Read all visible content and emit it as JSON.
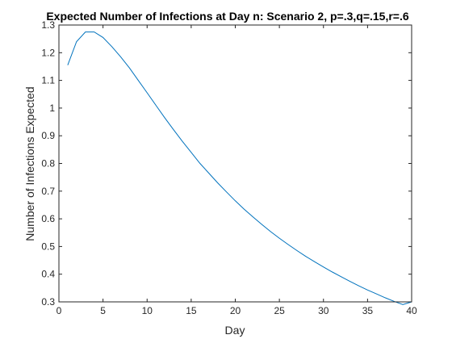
{
  "chart_data": {
    "type": "line",
    "title": "Expected Number of Infections at Day n: Scenario 2, p=.3,q=.15,r=.6",
    "xlabel": "Day",
    "ylabel": "Number of Infections Expected",
    "xlim": [
      0,
      40
    ],
    "ylim": [
      0.3,
      1.3
    ],
    "xticks": [
      0,
      5,
      10,
      15,
      20,
      25,
      30,
      35,
      40
    ],
    "xtick_labels": [
      "0",
      "5",
      "10",
      "15",
      "20",
      "25",
      "30",
      "35",
      "40"
    ],
    "yticks": [
      0.3,
      0.4,
      0.5,
      0.6,
      0.7,
      0.8,
      0.9,
      1.0,
      1.1,
      1.2,
      1.3
    ],
    "ytick_labels": [
      "0.3",
      "0.4",
      "0.5",
      "0.6",
      "0.7",
      "0.8",
      "0.9",
      "1",
      "1.1",
      "1.2",
      "1.3"
    ],
    "grid": false,
    "line_color": "#0072bd",
    "series": [
      {
        "x": [
          1,
          2,
          3,
          4,
          5,
          6,
          7,
          8,
          9,
          10,
          11,
          12,
          13,
          14,
          15,
          16,
          17,
          18,
          19,
          20,
          21,
          22,
          23,
          24,
          25,
          26,
          27,
          28,
          29,
          30,
          31,
          32,
          33,
          34,
          35,
          36,
          37,
          38,
          39,
          40
        ],
        "values": [
          1.155,
          1.24,
          1.275,
          1.275,
          1.255,
          1.222,
          1.185,
          1.145,
          1.1,
          1.055,
          1.01,
          0.965,
          0.922,
          0.88,
          0.84,
          0.8,
          0.765,
          0.73,
          0.697,
          0.665,
          0.635,
          0.607,
          0.58,
          0.554,
          0.53,
          0.507,
          0.485,
          0.464,
          0.445,
          0.426,
          0.408,
          0.391,
          0.374,
          0.358,
          0.343,
          0.329,
          0.315,
          0.302,
          0.29,
          0.3
        ]
      }
    ]
  }
}
